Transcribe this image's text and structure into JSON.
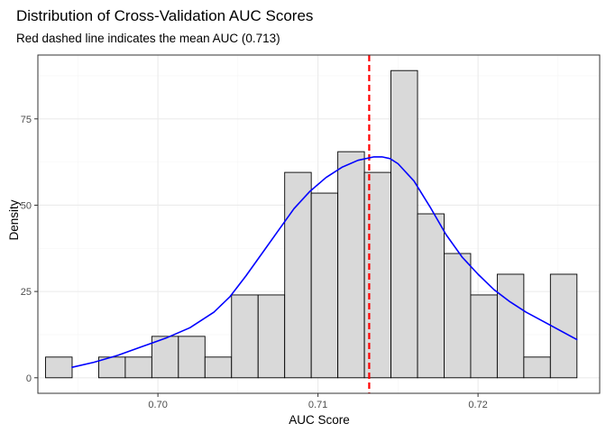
{
  "chart_data": {
    "type": "histogram",
    "title": "Distribution of Cross-Validation AUC Scores",
    "subtitle": "Red dashed line indicates the mean AUC (0.713)",
    "xlabel": "AUC Score",
    "ylabel": "Density",
    "xlim": [
      0.6925,
      0.7276
    ],
    "ylim": [
      -4.5,
      93.5
    ],
    "x_ticks": [
      0.7,
      0.71,
      0.72
    ],
    "x_tick_labels": [
      "0.70",
      "0.71",
      "0.72"
    ],
    "y_ticks": [
      0,
      25,
      50,
      75
    ],
    "y_tick_labels": [
      "0",
      "25",
      "50",
      "75"
    ],
    "grid": true,
    "bins": [
      {
        "x0": 0.69298,
        "x1": 0.69464,
        "density": 6
      },
      {
        "x0": 0.69464,
        "x1": 0.6963,
        "density": 0
      },
      {
        "x0": 0.6963,
        "x1": 0.69796,
        "density": 6
      },
      {
        "x0": 0.69796,
        "x1": 0.69962,
        "density": 6
      },
      {
        "x0": 0.69962,
        "x1": 0.70128,
        "density": 12
      },
      {
        "x0": 0.70128,
        "x1": 0.70294,
        "density": 12
      },
      {
        "x0": 0.70294,
        "x1": 0.7046,
        "density": 6
      },
      {
        "x0": 0.7046,
        "x1": 0.70626,
        "density": 24
      },
      {
        "x0": 0.70626,
        "x1": 0.70792,
        "density": 24
      },
      {
        "x0": 0.70792,
        "x1": 0.70958,
        "density": 59.5
      },
      {
        "x0": 0.70958,
        "x1": 0.71124,
        "density": 53.5
      },
      {
        "x0": 0.71124,
        "x1": 0.7129,
        "density": 65.5
      },
      {
        "x0": 0.7129,
        "x1": 0.71456,
        "density": 59.5
      },
      {
        "x0": 0.71456,
        "x1": 0.71622,
        "density": 89
      },
      {
        "x0": 0.71622,
        "x1": 0.71788,
        "density": 47.5
      },
      {
        "x0": 0.71788,
        "x1": 0.71954,
        "density": 36
      },
      {
        "x0": 0.71954,
        "x1": 0.7212,
        "density": 24
      },
      {
        "x0": 0.7212,
        "x1": 0.72286,
        "density": 30
      },
      {
        "x0": 0.72286,
        "x1": 0.72452,
        "density": 6
      },
      {
        "x0": 0.72452,
        "x1": 0.72618,
        "density": 30
      }
    ],
    "density_curve": {
      "x": [
        0.6946,
        0.696,
        0.6975,
        0.699,
        0.7005,
        0.702,
        0.7035,
        0.7045,
        0.7055,
        0.7065,
        0.7075,
        0.7085,
        0.7095,
        0.7105,
        0.7115,
        0.7125,
        0.7135,
        0.714,
        0.7145,
        0.715,
        0.716,
        0.717,
        0.718,
        0.719,
        0.72,
        0.721,
        0.722,
        0.723,
        0.724,
        0.725,
        0.7262
      ],
      "y": [
        3,
        4.5,
        6.5,
        9,
        11.5,
        14.5,
        19,
        23.5,
        29.5,
        36,
        42.5,
        49,
        54,
        58,
        61,
        63,
        64,
        64,
        63.5,
        62,
        57,
        49.5,
        41.5,
        35,
        30,
        25.5,
        22,
        19,
        16.5,
        14,
        11
      ]
    },
    "mean_line": {
      "x": 0.7132,
      "color": "#ff0000",
      "style": "dashed"
    },
    "colors": {
      "bar_fill": "#d9d9d9",
      "bar_stroke": "#000000",
      "curve": "#0000ff",
      "grid_major": "#ebebeb",
      "grid_minor": "#f5f5f5",
      "panel_border": "#333333"
    }
  }
}
